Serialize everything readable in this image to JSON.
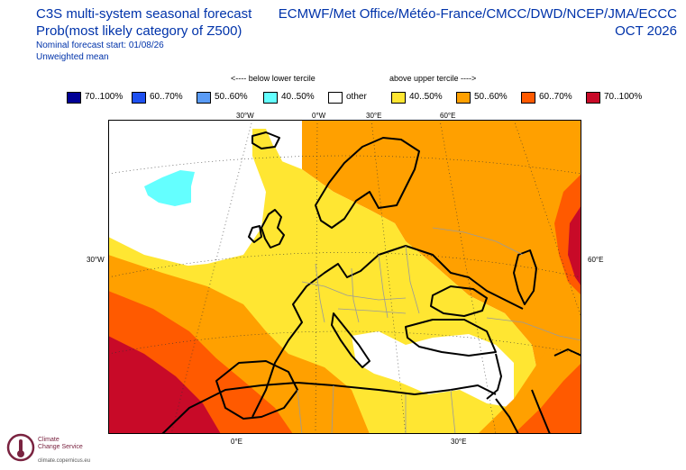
{
  "title": {
    "line1": "C3S multi-system seasonal forecast",
    "line2": "Prob(most likely category of Z500)",
    "line3": "Nominal forecast start: 01/08/26",
    "line4": "Unweighted mean"
  },
  "providers": "ECMWF/Met Office/Météo-France/CMCC/DWD/NCEP/JMA/ECCC",
  "valid_month": "OCT 2026",
  "legend": {
    "below_header": "<---- below lower tercile",
    "above_header": "above upper tercile ---->",
    "items": [
      {
        "label": "70..100%",
        "color": "#000096"
      },
      {
        "label": "60..70%",
        "color": "#1e50f0"
      },
      {
        "label": "50..60%",
        "color": "#5a9bf5"
      },
      {
        "label": "40..50%",
        "color": "#64ffff"
      },
      {
        "label": "other",
        "color": "#ffffff"
      },
      {
        "label": "40..50%",
        "color": "#ffe632"
      },
      {
        "label": "50..60%",
        "color": "#ffa000"
      },
      {
        "label": "60..70%",
        "color": "#ff5a00"
      },
      {
        "label": "70..100%",
        "color": "#c80a28"
      }
    ]
  },
  "axis_labels": {
    "lon_top": [
      "30°W",
      "0°W",
      "30°E",
      "60°E"
    ],
    "lon_bottom": [
      "0°E",
      "30°E"
    ],
    "lat_left": "30°W",
    "lat_right": "60°E"
  },
  "logo": {
    "name_line1": "Climate",
    "name_line2": "Change Service",
    "url": "climate.copernicus.eu"
  }
}
